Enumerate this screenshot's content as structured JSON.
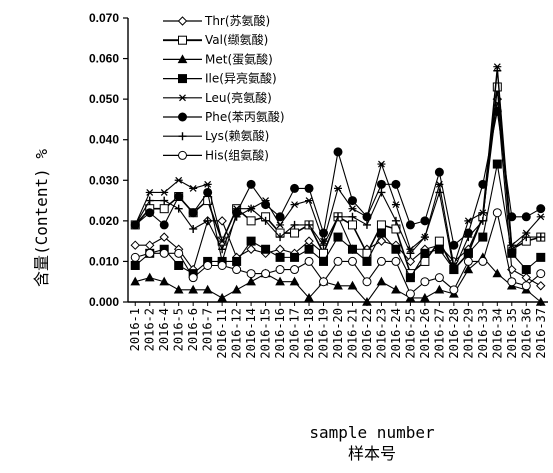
{
  "chart_data": {
    "type": "line",
    "xlabel": "sample number",
    "xlabel_sub": "样本号",
    "ylabel": "含量(Content) %",
    "ylim": [
      0,
      0.07
    ],
    "yticks": [
      "0.000",
      "0.010",
      "0.020",
      "0.030",
      "0.040",
      "0.050",
      "0.060",
      "0.070"
    ],
    "grid": false,
    "legend_position": "top-left",
    "categories": [
      "2016-1",
      "2016-2",
      "2016-4",
      "2016-5",
      "2016-6",
      "2016-7",
      "2016-11",
      "2016-12",
      "2016-14",
      "2016-15",
      "2016-16",
      "2016-17",
      "2016-18",
      "2016-19",
      "2016-20",
      "2016-21",
      "2016-22",
      "2016-23",
      "2016-24",
      "2016-25",
      "2016-26",
      "2016-27",
      "2016-28",
      "2016-29",
      "2016-33",
      "2016-34",
      "2016-35",
      "2016-36",
      "2016-37"
    ],
    "series": [
      {
        "name": "Thr(苏氨酸)",
        "marker": "diamond",
        "values": [
          0.014,
          0.014,
          0.016,
          0.013,
          0.008,
          0.02,
          0.02,
          0.011,
          0.013,
          0.012,
          0.013,
          0.012,
          0.015,
          0.012,
          0.021,
          0.013,
          0.013,
          0.015,
          0.014,
          0.01,
          0.013,
          0.014,
          0.01,
          0.013,
          0.021,
          0.05,
          0.008,
          0.006,
          0.004
        ]
      },
      {
        "name": "Val(缬氨酸)",
        "marker": "square-open",
        "values": [
          0.019,
          0.023,
          0.023,
          0.026,
          0.022,
          0.025,
          0.015,
          0.023,
          0.02,
          0.021,
          0.017,
          0.017,
          0.019,
          0.012,
          0.021,
          0.019,
          0.012,
          0.019,
          0.018,
          0.007,
          0.01,
          0.015,
          0.008,
          0.012,
          0.021,
          0.053,
          0.013,
          0.015,
          0.016
        ]
      },
      {
        "name": "Met(蛋氨酸)",
        "marker": "triangle",
        "values": [
          0.005,
          0.006,
          0.005,
          0.003,
          0.003,
          0.003,
          0.001,
          0.003,
          0.005,
          0.007,
          0.005,
          0.005,
          0.001,
          0.005,
          0.004,
          0.004,
          0.0,
          0.005,
          0.003,
          0.001,
          0.001,
          0.003,
          0.002,
          0.008,
          0.011,
          0.007,
          0.004,
          0.003,
          0.0
        ]
      },
      {
        "name": "Ile(异亮氨酸)",
        "marker": "square",
        "values": [
          0.009,
          0.012,
          0.013,
          0.009,
          0.007,
          0.01,
          0.01,
          0.01,
          0.015,
          0.013,
          0.011,
          0.011,
          0.013,
          0.01,
          0.016,
          0.013,
          0.01,
          0.017,
          0.013,
          0.006,
          0.012,
          0.013,
          0.008,
          0.012,
          0.016,
          0.034,
          0.012,
          0.008,
          0.011
        ]
      },
      {
        "name": "Leu(亮氨酸)",
        "marker": "star",
        "values": [
          0.019,
          0.027,
          0.027,
          0.03,
          0.028,
          0.029,
          0.015,
          0.023,
          0.023,
          0.025,
          0.019,
          0.024,
          0.025,
          0.015,
          0.028,
          0.023,
          0.021,
          0.034,
          0.024,
          0.013,
          0.016,
          0.029,
          0.009,
          0.02,
          0.022,
          0.058,
          0.014,
          0.017,
          0.021
        ]
      },
      {
        "name": "Phe(苯丙氨酸)",
        "marker": "circle",
        "values": [
          0.019,
          0.022,
          0.019,
          0.026,
          0.022,
          0.027,
          0.01,
          0.022,
          0.029,
          0.024,
          0.021,
          0.028,
          0.028,
          0.017,
          0.037,
          0.025,
          0.021,
          0.029,
          0.029,
          0.019,
          0.02,
          0.032,
          0.014,
          0.017,
          0.029,
          0.047,
          0.021,
          0.021,
          0.023
        ]
      },
      {
        "name": "Lys(赖氨酸)",
        "marker": "plus",
        "values": [
          0.019,
          0.025,
          0.025,
          0.023,
          0.018,
          0.02,
          0.013,
          0.021,
          0.023,
          0.02,
          0.016,
          0.019,
          0.019,
          0.014,
          0.021,
          0.021,
          0.019,
          0.027,
          0.02,
          0.012,
          0.016,
          0.027,
          0.008,
          0.016,
          0.02,
          0.057,
          0.013,
          0.016,
          0.016
        ]
      },
      {
        "name": "His(组氨酸)",
        "marker": "circle-open",
        "values": [
          0.011,
          0.012,
          0.012,
          0.012,
          0.006,
          0.009,
          0.009,
          0.008,
          0.007,
          0.007,
          0.008,
          0.008,
          0.01,
          0.005,
          0.01,
          0.01,
          0.005,
          0.01,
          0.01,
          0.002,
          0.005,
          0.006,
          0.003,
          0.01,
          0.01,
          0.022,
          0.005,
          0.004,
          0.007
        ]
      }
    ]
  }
}
